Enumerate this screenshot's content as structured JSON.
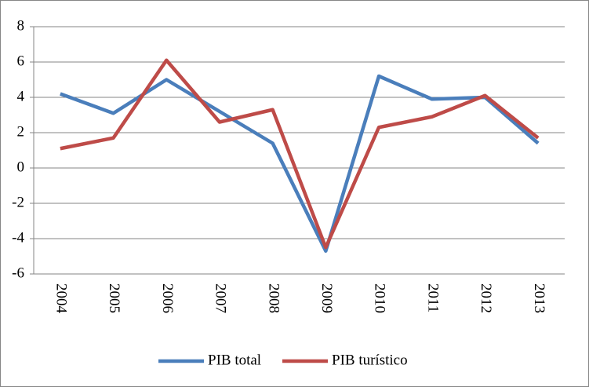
{
  "chart_data": {
    "type": "line",
    "categories": [
      "2004",
      "2005",
      "2006",
      "2007",
      "2008",
      "2009",
      "2010",
      "2011",
      "2012",
      "2013"
    ],
    "series": [
      {
        "name": "PIB total",
        "color": "#4a7ebb",
        "values": [
          4.2,
          3.1,
          5.0,
          3.2,
          1.4,
          -4.7,
          5.2,
          3.9,
          4.0,
          1.4
        ]
      },
      {
        "name": "PIB turístico",
        "color": "#be4b48",
        "values": [
          1.1,
          1.7,
          6.1,
          2.6,
          3.3,
          -4.5,
          2.3,
          2.9,
          4.1,
          1.7
        ]
      }
    ],
    "ylim": [
      -6,
      8
    ],
    "yticks": [
      -6,
      -4,
      -2,
      0,
      2,
      4,
      6,
      8
    ],
    "grid": true,
    "legend": "bottom"
  }
}
